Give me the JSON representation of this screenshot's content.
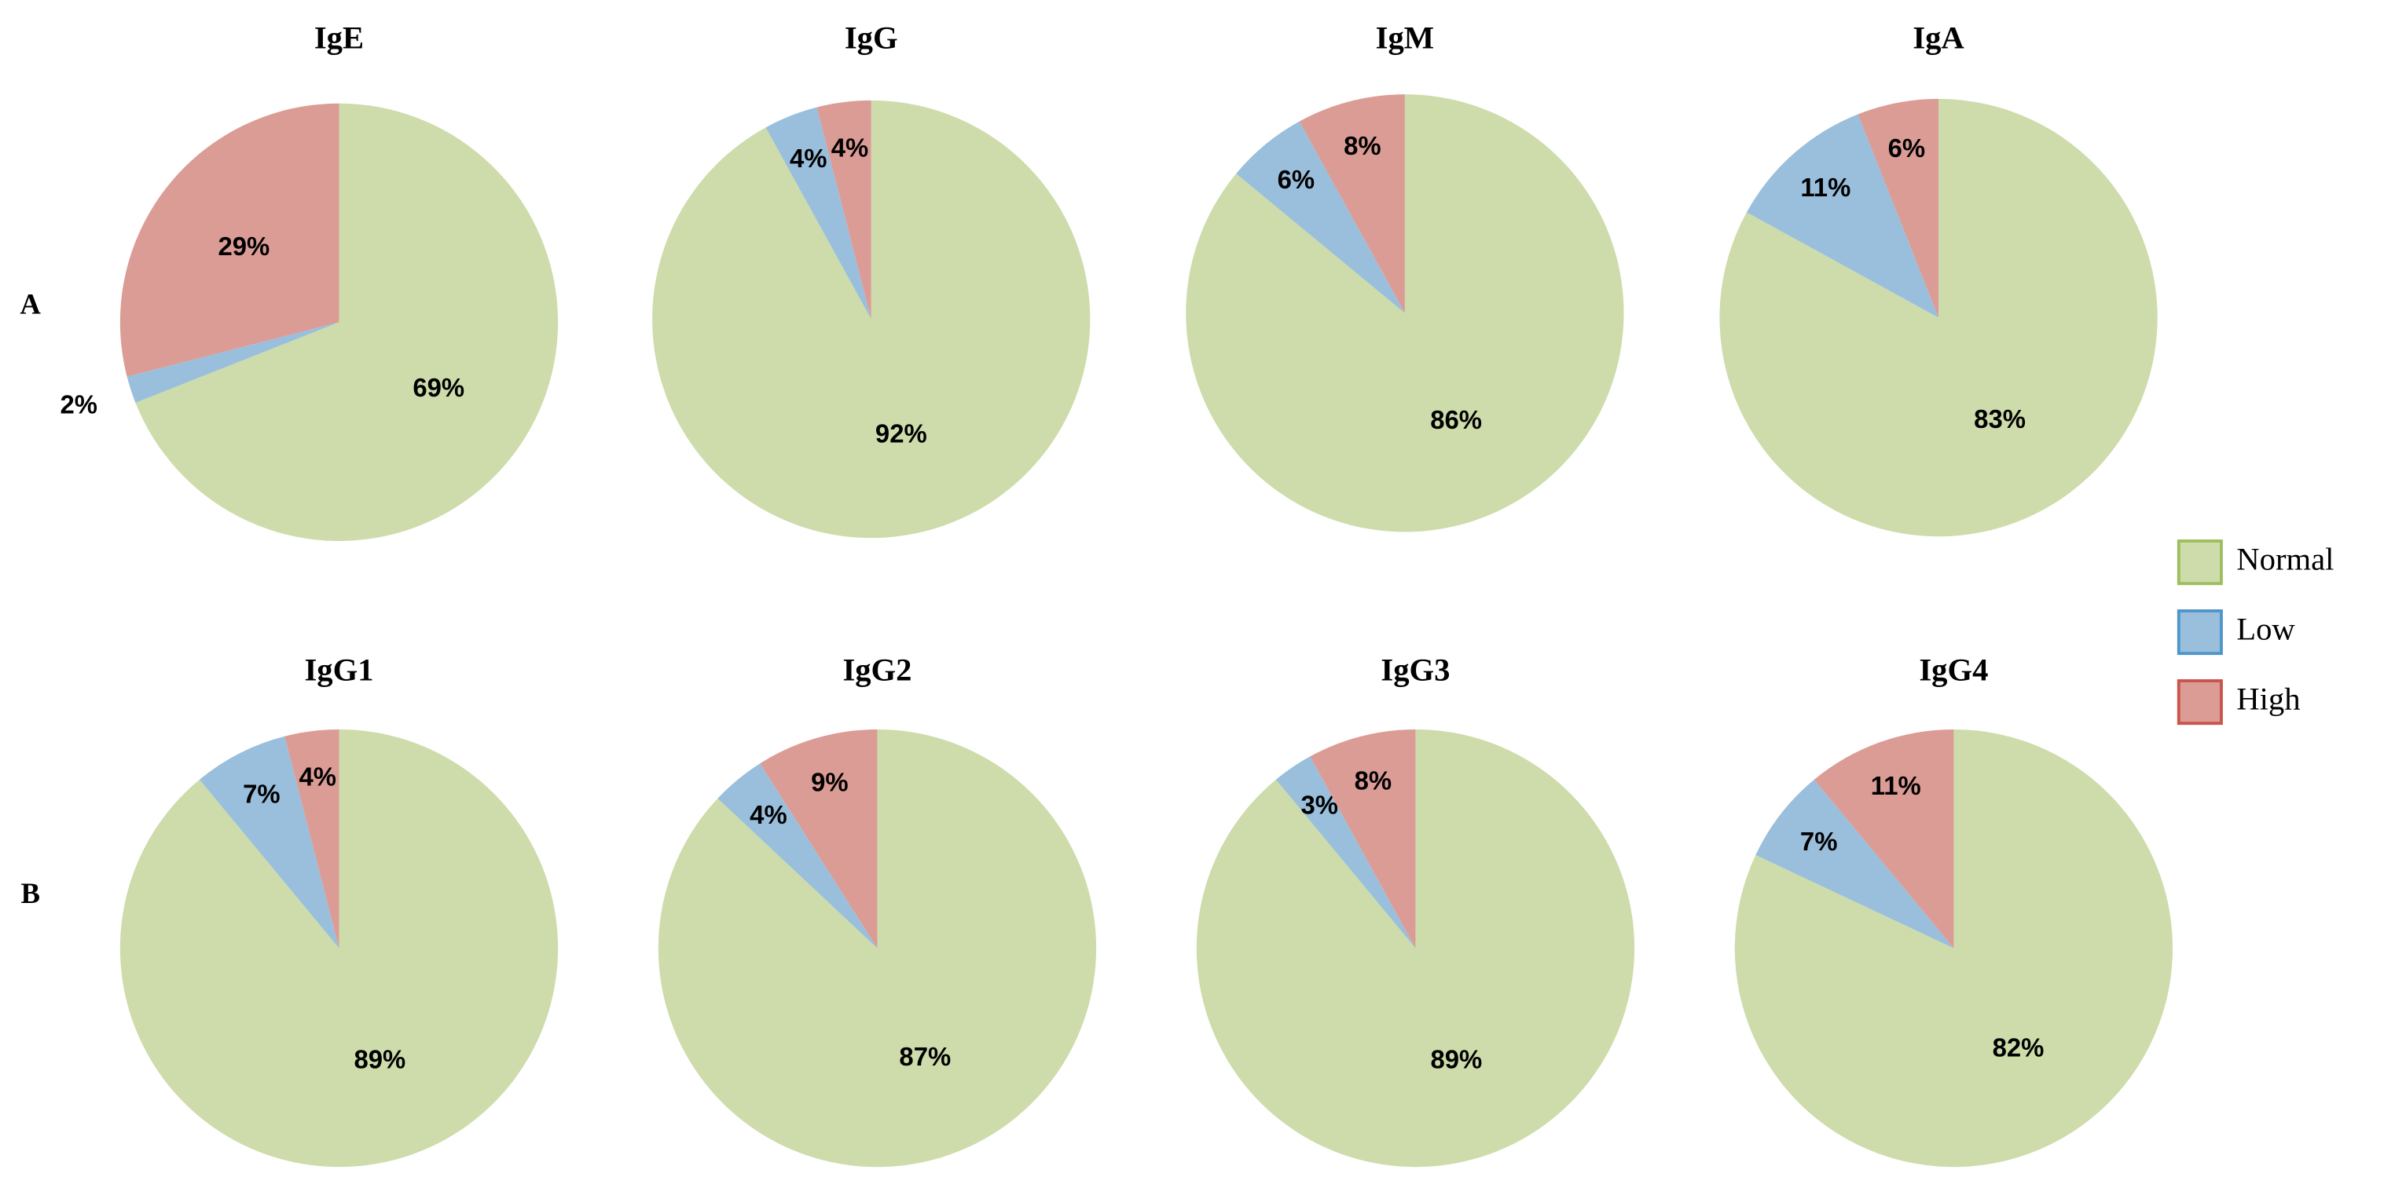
{
  "chart_data": [
    {
      "type": "pie",
      "title": "IgE",
      "categories": [
        "Normal",
        "Low",
        "High"
      ],
      "values": [
        69,
        2,
        29
      ],
      "value_labels": [
        "69%",
        "2%",
        "29%"
      ],
      "colors": [
        "#cddcaa",
        "#99bfdc",
        "#dc9c96"
      ]
    },
    {
      "type": "pie",
      "title": "IgG",
      "categories": [
        "Normal",
        "Low",
        "High"
      ],
      "values": [
        92,
        4,
        4
      ],
      "value_labels": [
        "92%",
        "4%",
        "4%"
      ],
      "colors": [
        "#cddcaa",
        "#99bfdc",
        "#dc9c96"
      ]
    },
    {
      "type": "pie",
      "title": "IgM",
      "categories": [
        "Normal",
        "Low",
        "High"
      ],
      "values": [
        86,
        6,
        8
      ],
      "value_labels": [
        "86%",
        "6%",
        "8%"
      ],
      "colors": [
        "#cddcaa",
        "#99bfdc",
        "#dc9c96"
      ]
    },
    {
      "type": "pie",
      "title": "IgA",
      "categories": [
        "Normal",
        "Low",
        "High"
      ],
      "values": [
        83,
        11,
        6
      ],
      "value_labels": [
        "83%",
        "11%",
        "6%"
      ],
      "colors": [
        "#cddcaa",
        "#99bfdc",
        "#dc9c96"
      ]
    },
    {
      "type": "pie",
      "title": "IgG1",
      "categories": [
        "Normal",
        "Low",
        "High"
      ],
      "values": [
        89,
        7,
        4
      ],
      "value_labels": [
        "89%",
        "7%",
        "4%"
      ],
      "colors": [
        "#cddcaa",
        "#99bfdc",
        "#dc9c96"
      ]
    },
    {
      "type": "pie",
      "title": "IgG2",
      "categories": [
        "Normal",
        "Low",
        "High"
      ],
      "values": [
        87,
        4,
        9
      ],
      "value_labels": [
        "87%",
        "4%",
        "9%"
      ],
      "colors": [
        "#cddcaa",
        "#99bfdc",
        "#dc9c96"
      ]
    },
    {
      "type": "pie",
      "title": "IgG3",
      "categories": [
        "Normal",
        "Low",
        "High"
      ],
      "values": [
        89,
        3,
        8
      ],
      "value_labels": [
        "89%",
        "3%",
        "8%"
      ],
      "colors": [
        "#cddcaa",
        "#99bfdc",
        "#dc9c96"
      ]
    },
    {
      "type": "pie",
      "title": "IgG4",
      "categories": [
        "Normal",
        "Low",
        "High"
      ],
      "values": [
        82,
        7,
        11
      ],
      "value_labels": [
        "82%",
        "7%",
        "11%"
      ],
      "colors": [
        "#cddcaa",
        "#99bfdc",
        "#dc9c96"
      ]
    }
  ],
  "row_labels": [
    "A",
    "B"
  ]
}
